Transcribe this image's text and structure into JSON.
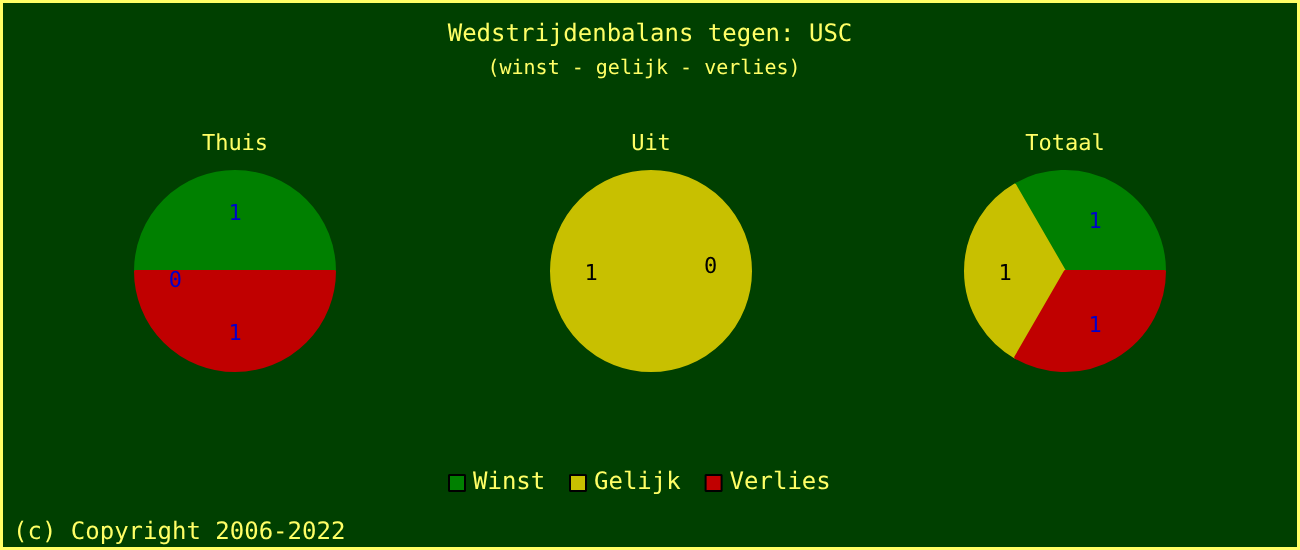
{
  "chart_data": [
    {
      "type": "pie",
      "title": "Thuis",
      "categories": [
        "Winst",
        "Gelijk",
        "Verlies"
      ],
      "values": [
        1,
        0,
        1
      ],
      "colors": [
        "#008000",
        "#c8c000",
        "#c00000"
      ],
      "value_labels": [
        "1",
        "0",
        "1"
      ],
      "legend": "bottom",
      "annotations": [
        "(c) Copyright 2006-2022"
      ]
    },
    {
      "type": "pie",
      "title": "Uit",
      "categories": [
        null,
        null,
        null
      ],
      "values": [
        0,
        1,
        0
      ],
      "colors": [
        "#008000",
        "#c8c000",
        "#c00000"
      ],
      "value_labels": [
        null,
        "1",
        "0"
      ],
      "annotations": [
        "Wedstrijdenbalans tegen: USC",
        "(winst -  gelijk - verlies)"
      ]
    },
    {
      "type": "pie",
      "title": "Totaal",
      "categories": [
        null,
        null,
        null
      ],
      "values": [
        1,
        1,
        1
      ],
      "colors": [
        "#008000",
        "#c8c000",
        "#c00000"
      ],
      "data_labels": true
    }
  ]
}
